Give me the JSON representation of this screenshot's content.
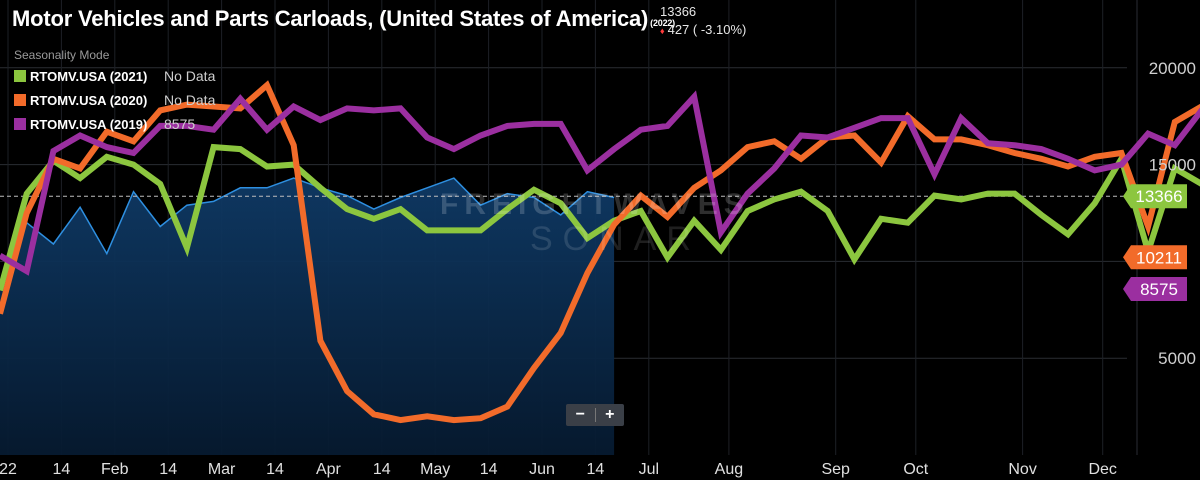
{
  "header": {
    "title": "Motor Vehicles and Parts Carloads, (United States of America)",
    "title_year": "(2022)",
    "current_value": "13366",
    "change_text": "427 ( -3.10%)"
  },
  "legend": {
    "mode_label": "Seasonality Mode",
    "items": [
      {
        "name": "RTOMV.USA (2021)",
        "value": "No Data",
        "color": "#8cc63f"
      },
      {
        "name": "RTOMV.USA (2020)",
        "value": "No Data",
        "color": "#f26b2a"
      },
      {
        "name": "RTOMV.USA (2019)",
        "value": "8575",
        "color": "#9b2fa0"
      }
    ]
  },
  "zoom": {
    "minus": "−",
    "plus": "+"
  },
  "watermark": {
    "line1": "FREIGHTWAVES",
    "line2": "SONAR"
  },
  "chart_data": {
    "type": "line",
    "title": "Motor Vehicles and Parts Carloads, (United States of America)",
    "ylim": [
      0,
      23500
    ],
    "yticks": [
      5000,
      15000,
      20000
    ],
    "grid": true,
    "x_ticks": [
      "22",
      "14",
      "Feb",
      "14",
      "Mar",
      "14",
      "Apr",
      "14",
      "May",
      "14",
      "Jun",
      "14",
      "Jul",
      "Aug",
      "Sep",
      "Oct",
      "Nov",
      "Dec"
    ],
    "x_tick_week": [
      0,
      2,
      4,
      6,
      8,
      10,
      12,
      14,
      16,
      18,
      20,
      22,
      24,
      27,
      31,
      34,
      38,
      41
    ],
    "reference_line": 13366,
    "end_labels": [
      {
        "value": "13366",
        "color": "#8cc63f"
      },
      {
        "value": "10211",
        "color": "#f26b2a"
      },
      {
        "value": "8575",
        "color": "#9b2fa0"
      }
    ],
    "series": [
      {
        "name": "RTOMV.USA (2022)",
        "color": "#2e8fe0",
        "area": true,
        "values": [
          8600,
          12000,
          10900,
          12800,
          10400,
          13600,
          11800,
          12900,
          13100,
          13800,
          13800,
          14300,
          13800,
          13400,
          12700,
          13300,
          13800,
          14300,
          12900,
          13500,
          13300,
          12400,
          13600,
          13300
        ]
      },
      {
        "name": "RTOMV.USA (2021)",
        "color": "#8cc63f",
        "values": [
          8500,
          13500,
          15200,
          14300,
          15400,
          15000,
          14000,
          10700,
          15900,
          15800,
          14900,
          15000,
          13800,
          12700,
          12200,
          12700,
          11600,
          11600,
          11600,
          12700,
          13700,
          13000,
          11200,
          12100,
          12600,
          10200,
          12100,
          10600,
          12600,
          13200,
          13600,
          12600,
          10100,
          12200,
          12000,
          13400,
          13200,
          13500,
          13500,
          12400,
          11400,
          13000,
          15300,
          10500,
          14800,
          14000,
          12600,
          9700,
          9700
        ]
      },
      {
        "name": "RTOMV.USA (2020)",
        "color": "#f26b2a",
        "values": [
          7300,
          12500,
          15300,
          14800,
          16700,
          16200,
          17800,
          18100,
          18000,
          17900,
          19100,
          16000,
          5900,
          3300,
          2100,
          1800,
          2000,
          1800,
          1900,
          2500,
          4500,
          6300,
          9400,
          11900,
          13400,
          12300,
          13800,
          14700,
          15900,
          16200,
          15300,
          16400,
          16500,
          15100,
          17500,
          16300,
          16300,
          16000,
          15600,
          15300,
          14900,
          15400,
          15600,
          11800,
          17200,
          18000,
          15900,
          10200,
          10200
        ]
      },
      {
        "name": "RTOMV.USA (2019)",
        "color": "#9b2fa0",
        "values": [
          10300,
          9500,
          15700,
          16500,
          15900,
          15600,
          17000,
          17000,
          16800,
          18400,
          16800,
          18000,
          17300,
          17900,
          17800,
          17900,
          16400,
          15800,
          16500,
          17000,
          17100,
          17100,
          14700,
          15800,
          16800,
          17000,
          18500,
          11500,
          13500,
          14800,
          16500,
          16400,
          16900,
          17400,
          17400,
          14500,
          17400,
          16100,
          16000,
          15800,
          15300,
          14700,
          15000,
          16600,
          16000,
          17800,
          13000,
          17000,
          18000,
          16900,
          8575
        ]
      }
    ]
  }
}
